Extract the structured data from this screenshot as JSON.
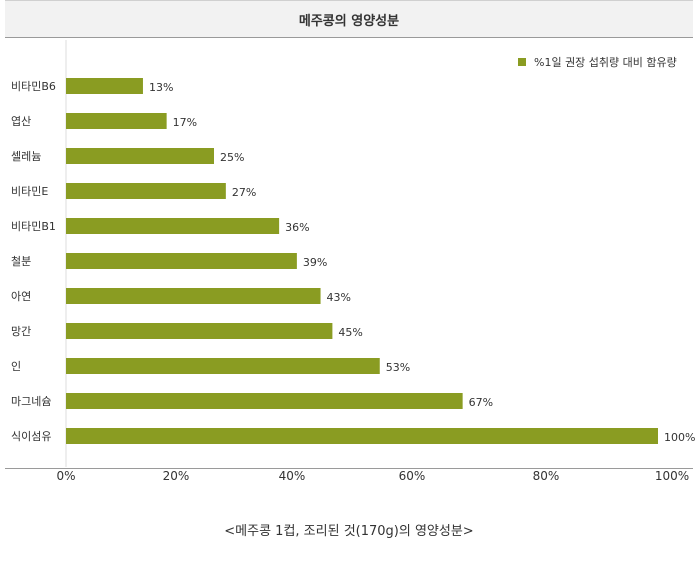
{
  "chart_data": {
    "type": "bar",
    "orientation": "horizontal",
    "title": "메주콩의 영양성분",
    "caption": "<메주콩 1컵, 조리된 것(170g)의 영양성분>",
    "categories": [
      "비타민B6",
      "엽산",
      "셀레늄",
      "비타민E",
      "비타민B1",
      "철분",
      "아연",
      "망간",
      "인",
      "마그네슘",
      "식이섬유"
    ],
    "series": [
      {
        "name": "%1일 권장 섭취량 대비 함유량",
        "values": [
          13,
          17,
          25,
          27,
          36,
          39,
          43,
          45,
          53,
          67,
          100
        ],
        "value_labels": [
          "13%",
          "17%",
          "25%",
          "27%",
          "36%",
          "39%",
          "43%",
          "45%",
          "53%",
          "67%",
          "100%"
        ]
      }
    ],
    "xlim": [
      0,
      100
    ],
    "x_ticks": [
      "0%",
      "20%",
      "40%",
      "60%",
      "80%",
      "100%"
    ],
    "legend_position": "top-right",
    "grid": false,
    "bar_color": "#8a9c22"
  }
}
